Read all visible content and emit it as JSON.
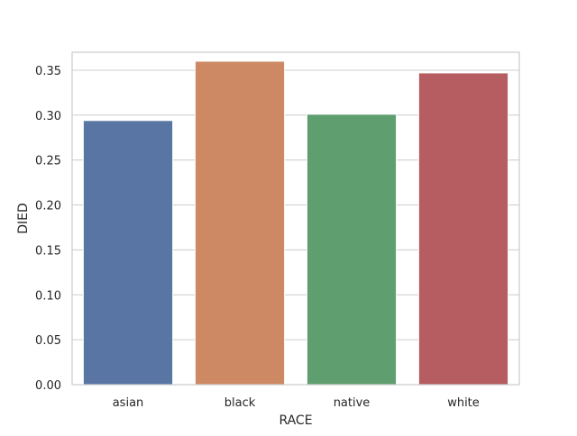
{
  "chart_data": {
    "type": "bar",
    "title": "",
    "xlabel": "RACE",
    "ylabel": "DIED",
    "categories": [
      "asian",
      "black",
      "native",
      "white"
    ],
    "values": [
      0.294,
      0.36,
      0.301,
      0.347
    ],
    "colors": [
      "#5875a4",
      "#cc8963",
      "#5f9e6e",
      "#b55d60"
    ],
    "ylim": [
      0,
      0.37
    ],
    "yticks": [
      0.0,
      0.05,
      0.1,
      0.15,
      0.2,
      0.25,
      0.3,
      0.35
    ],
    "ytick_labels": [
      "0.00",
      "0.05",
      "0.10",
      "0.15",
      "0.20",
      "0.25",
      "0.30",
      "0.35"
    ],
    "grid": true,
    "grid_axis": "y"
  }
}
